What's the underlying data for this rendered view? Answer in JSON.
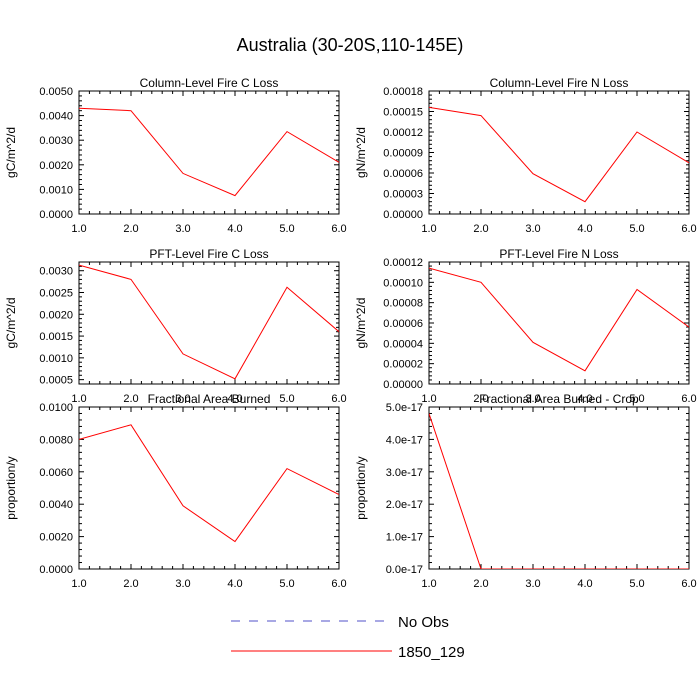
{
  "figure": {
    "title": "Australia (30-20S,110-145E)"
  },
  "legend": {
    "entries": [
      {
        "label": "No Obs",
        "color": "#5050c8",
        "dashed": true
      },
      {
        "label": "1850_129",
        "color": "#ff0000",
        "dashed": false
      }
    ]
  },
  "chart_data": [
    {
      "type": "line",
      "title": "Column-Level Fire C Loss",
      "ylabel": "gC/m^2/d",
      "xlim": [
        1,
        6
      ],
      "ylim": [
        0,
        0.005
      ],
      "xticks": [
        "1.0",
        "2.0",
        "3.0",
        "4.0",
        "5.0",
        "6.0"
      ],
      "xtick_values": [
        1,
        2,
        3,
        4,
        5,
        6
      ],
      "yticks": [
        "0.0000",
        "0.0010",
        "0.0020",
        "0.0030",
        "0.0040",
        "0.0050"
      ],
      "ytick_values": [
        0,
        0.001,
        0.002,
        0.003,
        0.004,
        0.005
      ],
      "x": [
        1,
        2,
        3,
        4,
        5,
        6
      ],
      "series": [
        {
          "name": "1850_129",
          "color": "#ff0000",
          "values": [
            0.0043,
            0.0042,
            0.00165,
            0.00075,
            0.00335,
            0.0021
          ]
        }
      ]
    },
    {
      "type": "line",
      "title": "Column-Level Fire N Loss",
      "ylabel": "gN/m^2/d",
      "xlim": [
        1,
        6
      ],
      "ylim": [
        0,
        0.00018
      ],
      "xticks": [
        "1.0",
        "2.0",
        "3.0",
        "4.0",
        "5.0",
        "6.0"
      ],
      "xtick_values": [
        1,
        2,
        3,
        4,
        5,
        6
      ],
      "yticks": [
        "0.00000",
        "0.00003",
        "0.00006",
        "0.00009",
        "0.00012",
        "0.00015",
        "0.00018"
      ],
      "ytick_values": [
        0,
        3e-05,
        6e-05,
        9e-05,
        0.00012,
        0.00015,
        0.00018
      ],
      "x": [
        1,
        2,
        3,
        4,
        5,
        6
      ],
      "series": [
        {
          "name": "1850_129",
          "color": "#ff0000",
          "values": [
            0.000156,
            0.000144,
            5.9e-05,
            1.8e-05,
            0.00012,
            7.5e-05
          ]
        }
      ]
    },
    {
      "type": "line",
      "title": "PFT-Level Fire C Loss",
      "ylabel": "gC/m^2/d",
      "xlim": [
        1,
        6
      ],
      "ylim": [
        0.0004,
        0.0032
      ],
      "xticks": [
        "1.0",
        "2.0",
        "3.0",
        "4.0",
        "5.0",
        "6.0"
      ],
      "xtick_values": [
        1,
        2,
        3,
        4,
        5,
        6
      ],
      "yticks": [
        "0.0005",
        "0.0010",
        "0.0015",
        "0.0020",
        "0.0025",
        "0.0030"
      ],
      "ytick_values": [
        0.0005,
        0.001,
        0.0015,
        0.002,
        0.0025,
        0.003
      ],
      "x": [
        1,
        2,
        3,
        4,
        5,
        6
      ],
      "series": [
        {
          "name": "1850_129",
          "color": "#ff0000",
          "values": [
            0.00313,
            0.0028,
            0.00109,
            0.00052,
            0.00262,
            0.0016
          ]
        }
      ]
    },
    {
      "type": "line",
      "title": "PFT-Level Fire N Loss",
      "ylabel": "gN/m^2/d",
      "xlim": [
        1,
        6
      ],
      "ylim": [
        0,
        0.00012
      ],
      "xticks": [
        "1.0",
        "2.0",
        "3.0",
        "4.0",
        "5.0",
        "6.0"
      ],
      "xtick_values": [
        1,
        2,
        3,
        4,
        5,
        6
      ],
      "yticks": [
        "0.00000",
        "0.00002",
        "0.00004",
        "0.00006",
        "0.00008",
        "0.00010",
        "0.00012"
      ],
      "ytick_values": [
        0,
        2e-05,
        4e-05,
        6e-05,
        8e-05,
        0.0001,
        0.00012
      ],
      "x": [
        1,
        2,
        3,
        4,
        5,
        6
      ],
      "series": [
        {
          "name": "1850_129",
          "color": "#ff0000",
          "values": [
            0.000114,
            0.0001,
            4.1e-05,
            1.3e-05,
            9.3e-05,
            5.6e-05
          ]
        }
      ]
    },
    {
      "type": "line",
      "title": "Fractional Area Burned",
      "ylabel": "proportion/y",
      "xlim": [
        1,
        6
      ],
      "ylim": [
        0,
        0.01
      ],
      "xticks": [
        "1.0",
        "2.0",
        "3.0",
        "4.0",
        "5.0",
        "6.0"
      ],
      "xtick_values": [
        1,
        2,
        3,
        4,
        5,
        6
      ],
      "yticks": [
        "0.0000",
        "0.0020",
        "0.0040",
        "0.0060",
        "0.0080",
        "0.0100"
      ],
      "ytick_values": [
        0,
        0.002,
        0.004,
        0.006,
        0.008,
        0.01
      ],
      "x": [
        1,
        2,
        3,
        4,
        5,
        6
      ],
      "series": [
        {
          "name": "1850_129",
          "color": "#ff0000",
          "values": [
            0.008,
            0.0089,
            0.0039,
            0.0017,
            0.0062,
            0.0046
          ]
        }
      ]
    },
    {
      "type": "line",
      "title": "Fractional Area Burned - Crop",
      "ylabel": "proportion/y",
      "xlim": [
        1,
        6
      ],
      "ylim": [
        0,
        5e-17
      ],
      "xticks": [
        "1.0",
        "2.0",
        "3.0",
        "4.0",
        "5.0",
        "6.0"
      ],
      "xtick_values": [
        1,
        2,
        3,
        4,
        5,
        6
      ],
      "yticks": [
        "0.0e-17",
        "1.0e-17",
        "2.0e-17",
        "3.0e-17",
        "4.0e-17",
        "5.0e-17"
      ],
      "ytick_values": [
        0,
        1e-17,
        2e-17,
        3e-17,
        4e-17,
        5e-17
      ],
      "x": [
        1,
        2,
        3,
        4,
        5,
        6
      ],
      "series": [
        {
          "name": "1850_129",
          "color": "#ff0000",
          "values": [
            4.8e-17,
            0,
            0,
            0,
            0,
            0
          ]
        }
      ]
    }
  ]
}
